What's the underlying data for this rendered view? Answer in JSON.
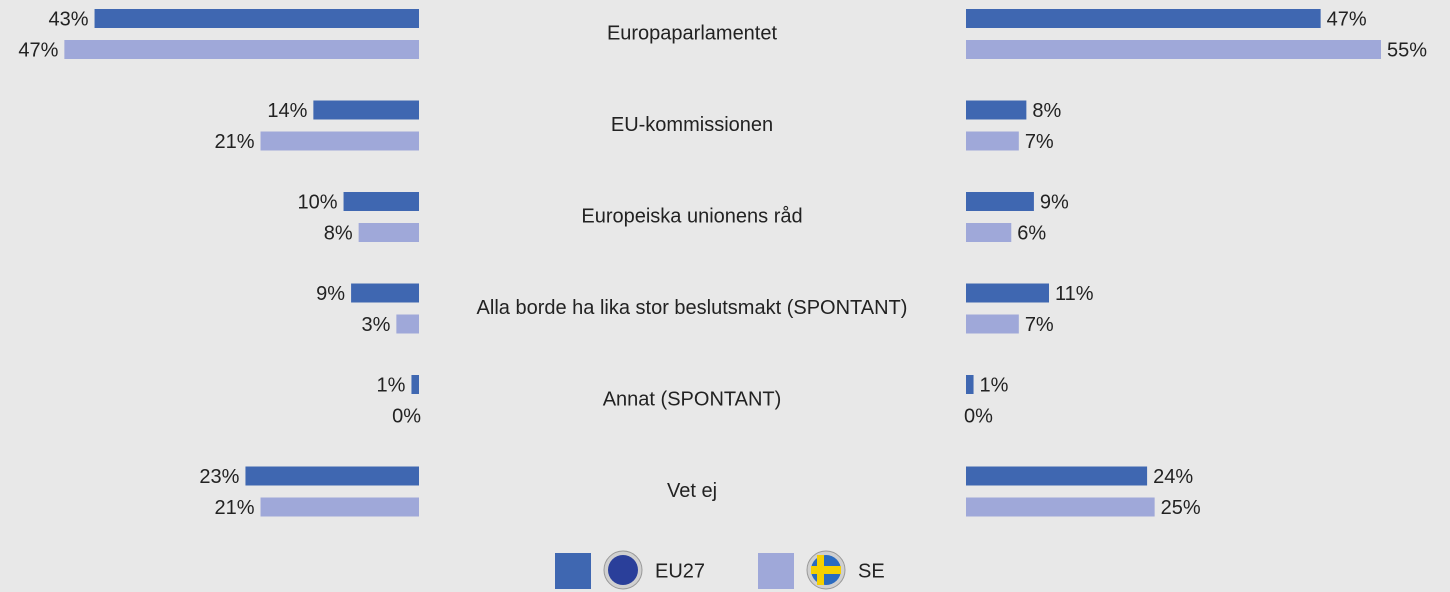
{
  "chart_data": {
    "type": "bar",
    "orientation": "horizontal",
    "categories": [
      "Europaparlamentet",
      "EU-kommissionen",
      "Europeiska unionens råd",
      "Alla borde ha lika stor beslutsmakt (SPONTANT)",
      "Annat (SPONTANT)",
      "Vet ej"
    ],
    "series": [
      {
        "name": "EU27",
        "color": "#3f67b1"
      },
      {
        "name": "SE",
        "color": "#9fa8d9"
      }
    ],
    "xlim": [
      0,
      55
    ],
    "panels": [
      {
        "direction": "left",
        "series": [
          {
            "values": [
              43,
              14,
              10,
              9,
              1,
              23
            ],
            "value_labels": [
              "43%",
              "14%",
              "10%",
              "9%",
              "1%",
              "23%"
            ]
          },
          {
            "values": [
              47,
              21,
              8,
              3,
              0,
              21
            ],
            "value_labels": [
              "47%",
              "21%",
              "8%",
              "3%",
              "0%",
              "21%"
            ]
          }
        ]
      },
      {
        "direction": "right",
        "series": [
          {
            "values": [
              47,
              8,
              9,
              11,
              1,
              24
            ],
            "value_labels": [
              "47%",
              "8%",
              "9%",
              "11%",
              "1%",
              "24%"
            ]
          },
          {
            "values": [
              55,
              7,
              6,
              7,
              0,
              25
            ],
            "value_labels": [
              "55%",
              "7%",
              "6%",
              "7%",
              "0%",
              "25%"
            ]
          }
        ]
      }
    ]
  }
}
